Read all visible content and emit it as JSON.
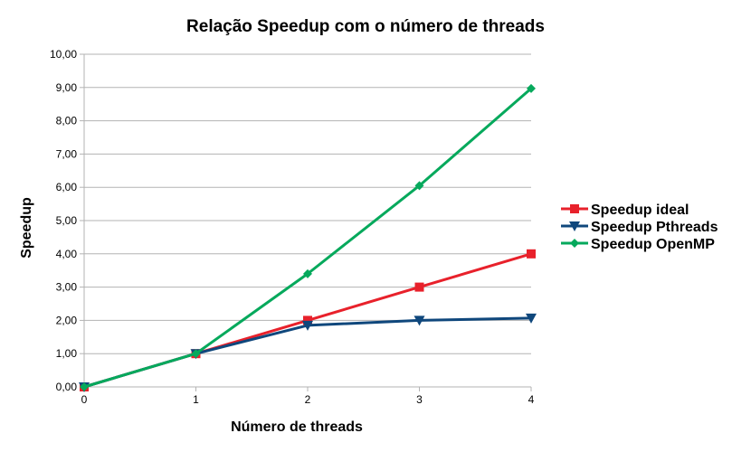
{
  "chart_data": {
    "type": "line",
    "title": "Relação Speedup com o número de threads",
    "xlabel": "Número de threads",
    "ylabel": "Speedup",
    "x": [
      0,
      1,
      2,
      3,
      4
    ],
    "xlim": [
      0,
      4
    ],
    "ylim": [
      0,
      10
    ],
    "x_ticks": [
      "0",
      "1",
      "2",
      "3",
      "4"
    ],
    "y_ticks": [
      "0,00",
      "1,00",
      "2,00",
      "3,00",
      "4,00",
      "5,00",
      "6,00",
      "7,00",
      "8,00",
      "9,00",
      "10,00"
    ],
    "grid": true,
    "legend_position": "right",
    "series": [
      {
        "name": "Speedup ideal",
        "values": [
          0,
          1,
          2,
          3,
          4
        ],
        "color": "#e8212b",
        "marker": "square"
      },
      {
        "name": "Speedup Pthreads",
        "values": [
          0,
          1,
          1.85,
          2.0,
          2.07
        ],
        "color": "#0f477c",
        "marker": "triangle-down"
      },
      {
        "name": "Speedup OpenMP",
        "values": [
          0,
          1,
          3.4,
          6.05,
          8.97
        ],
        "color": "#06a95c",
        "marker": "diamond"
      }
    ]
  }
}
